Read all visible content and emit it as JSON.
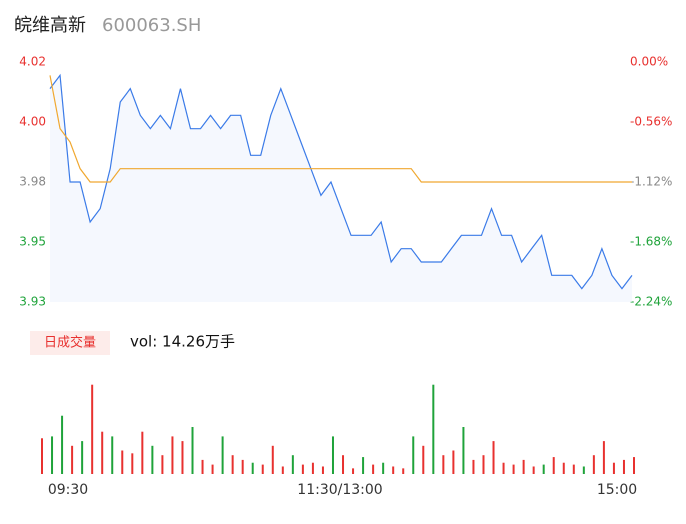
{
  "header": {
    "name": "皖维高新",
    "code": "600063.SH"
  },
  "chart_data": [
    {
      "type": "line",
      "ylim": [
        3.93,
        4.02
      ],
      "yticks": [
        4.02,
        {
          "value": 3.9975,
          "label": "4.00"
        },
        {
          "value": 3.975,
          "label": "3.98"
        },
        {
          "value": 3.9525,
          "label": "3.95"
        },
        3.93
      ],
      "ytick_colors": [
        "#e8312f",
        "#e8312f",
        "#888888",
        "#1fa33a",
        "#1fa33a"
      ],
      "y2lim": [
        -2.24,
        0
      ],
      "y2ticks": [
        {
          "value": 0,
          "label": "0.00%"
        },
        {
          "value": -0.56,
          "label": "-0.56%"
        },
        {
          "value": -1.12,
          "label": "-1.12%"
        },
        {
          "value": -1.68,
          "label": "-1.68%"
        },
        {
          "value": -2.24,
          "label": "-2.24%"
        }
      ],
      "series": [
        {
          "name": "price",
          "color": "#3b7be8",
          "values": [
            4.01,
            4.015,
            3.975,
            3.975,
            3.96,
            3.965,
            3.98,
            4.005,
            4.01,
            4.0,
            3.995,
            4.0,
            3.995,
            4.01,
            3.995,
            3.995,
            4.0,
            3.995,
            4.0,
            4.0,
            3.985,
            3.985,
            4.0,
            4.01,
            4.0,
            3.99,
            3.98,
            3.97,
            3.975,
            3.965,
            3.955,
            3.955,
            3.955,
            3.96,
            3.945,
            3.95,
            3.95,
            3.945,
            3.945,
            3.945,
            3.95,
            3.955,
            3.955,
            3.955,
            3.965,
            3.955,
            3.955,
            3.945,
            3.95,
            3.955,
            3.94,
            3.94,
            3.94,
            3.935,
            3.94,
            3.95,
            3.94,
            3.935,
            3.94
          ]
        },
        {
          "name": "avg",
          "color": "#f0a830",
          "values": [
            4.015,
            3.995,
            3.99,
            3.98,
            3.975,
            3.975,
            3.975,
            3.98,
            3.98,
            3.98,
            3.98,
            3.98,
            3.98,
            3.98,
            3.98,
            3.98,
            3.98,
            3.98,
            3.98,
            3.98,
            3.98,
            3.98,
            3.98,
            3.98,
            3.98,
            3.98,
            3.98,
            3.98,
            3.98,
            3.98,
            3.98,
            3.98,
            3.98,
            3.98,
            3.98,
            3.98,
            3.98,
            3.975,
            3.975,
            3.975,
            3.975,
            3.975,
            3.975,
            3.975,
            3.975,
            3.975,
            3.975,
            3.975,
            3.975,
            3.975,
            3.975,
            3.975,
            3.975,
            3.975,
            3.975,
            3.975,
            3.975,
            3.975,
            3.975
          ]
        }
      ],
      "xlabels": [
        "09:30",
        "11:30/13:00",
        "15:00"
      ]
    },
    {
      "type": "bar",
      "legend": "日成交量",
      "vol_label": "vol: 14.26万手",
      "ylim": [
        0,
        100
      ],
      "values": [
        38,
        40,
        62,
        30,
        35,
        95,
        45,
        40,
        25,
        22,
        45,
        30,
        20,
        40,
        35,
        50,
        15,
        10,
        40,
        20,
        15,
        12,
        10,
        30,
        8,
        20,
        10,
        12,
        8,
        40,
        20,
        6,
        18,
        10,
        12,
        8,
        6,
        40,
        30,
        95,
        20,
        25,
        50,
        15,
        20,
        35,
        12,
        10,
        15,
        8,
        10,
        18,
        12,
        10,
        8,
        20,
        35,
        12,
        15,
        18
      ],
      "colors": [
        "#e8312f",
        "#1fa33a",
        "#1fa33a",
        "#e8312f",
        "#1fa33a",
        "#e8312f",
        "#e8312f",
        "#1fa33a",
        "#e8312f",
        "#e8312f",
        "#e8312f",
        "#1fa33a",
        "#e8312f",
        "#e8312f",
        "#e8312f",
        "#1fa33a",
        "#e8312f",
        "#e8312f",
        "#1fa33a",
        "#e8312f",
        "#e8312f",
        "#1fa33a",
        "#e8312f",
        "#e8312f",
        "#e8312f",
        "#1fa33a",
        "#e8312f",
        "#e8312f",
        "#e8312f",
        "#1fa33a",
        "#e8312f",
        "#e8312f",
        "#1fa33a",
        "#e8312f",
        "#1fa33a",
        "#e8312f",
        "#e8312f",
        "#1fa33a",
        "#e8312f",
        "#1fa33a",
        "#e8312f",
        "#e8312f",
        "#1fa33a",
        "#e8312f",
        "#e8312f",
        "#e8312f",
        "#e8312f",
        "#e8312f",
        "#e8312f",
        "#e8312f",
        "#1fa33a",
        "#e8312f",
        "#e8312f",
        "#e8312f",
        "#1fa33a",
        "#e8312f",
        "#e8312f",
        "#e8312f",
        "#e8312f",
        "#e8312f"
      ]
    }
  ]
}
